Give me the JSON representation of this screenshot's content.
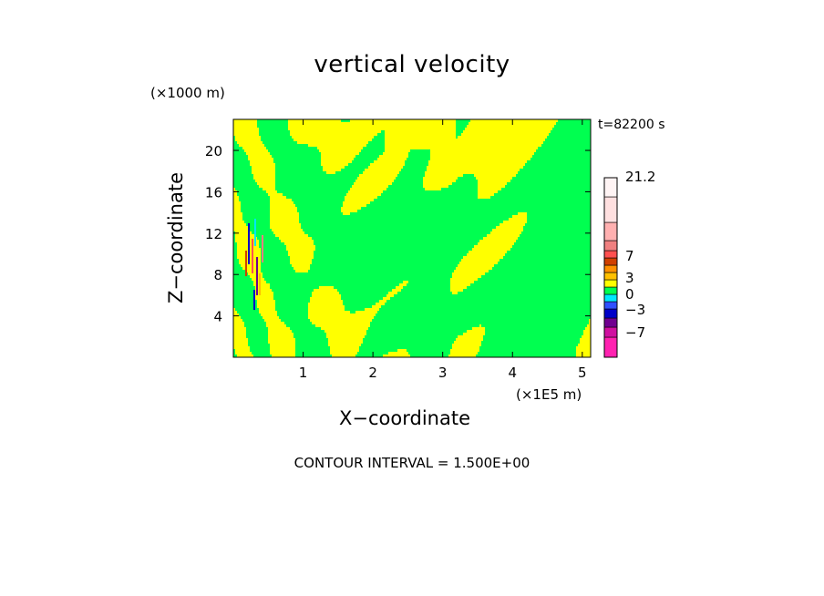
{
  "chart_data": {
    "type": "heatmap",
    "title": "vertical velocity",
    "xlabel": "X−coordinate",
    "ylabel": "Z−coordinate",
    "x_unit_label": "(×1E5 m)",
    "y_unit_label": "(×1000 m)",
    "time_label": "t=82200 s",
    "footer": "CONTOUR INTERVAL = 1.500E+00",
    "xlim": [
      0,
      5.12
    ],
    "ylim": [
      0,
      23
    ],
    "x_ticks": [
      1,
      2,
      3,
      4,
      5
    ],
    "y_ticks": [
      4,
      8,
      12,
      16,
      20
    ],
    "x_tick_labels": [
      "1",
      "2",
      "3",
      "4",
      "5"
    ],
    "y_tick_labels": [
      "4",
      "8",
      "12",
      "16",
      "20"
    ],
    "colorbar": {
      "tick_labels": [
        "21.2",
        "7",
        "3",
        "0",
        "−3",
        "−7"
      ],
      "levels": [
        {
          "color": "#ff22b0"
        },
        {
          "color": "#d010a0"
        },
        {
          "color": "#700090"
        },
        {
          "color": "#0000c8"
        },
        {
          "color": "#3050ff"
        },
        {
          "color": "#00e8ff"
        },
        {
          "color": "#00ff50"
        },
        {
          "color": "#ffff00"
        },
        {
          "color": "#ffc000"
        },
        {
          "color": "#ff9000"
        },
        {
          "color": "#d04000"
        },
        {
          "color": "#ff5050"
        },
        {
          "color": "#f08080"
        },
        {
          "color": "#ffb0b0"
        },
        {
          "color": "#ffe0e0"
        },
        {
          "color": "#fff4f4"
        }
      ]
    },
    "colors": {
      "field_yellow": "#ffff00",
      "field_green": "#00ff50",
      "frame": "#000000"
    }
  }
}
